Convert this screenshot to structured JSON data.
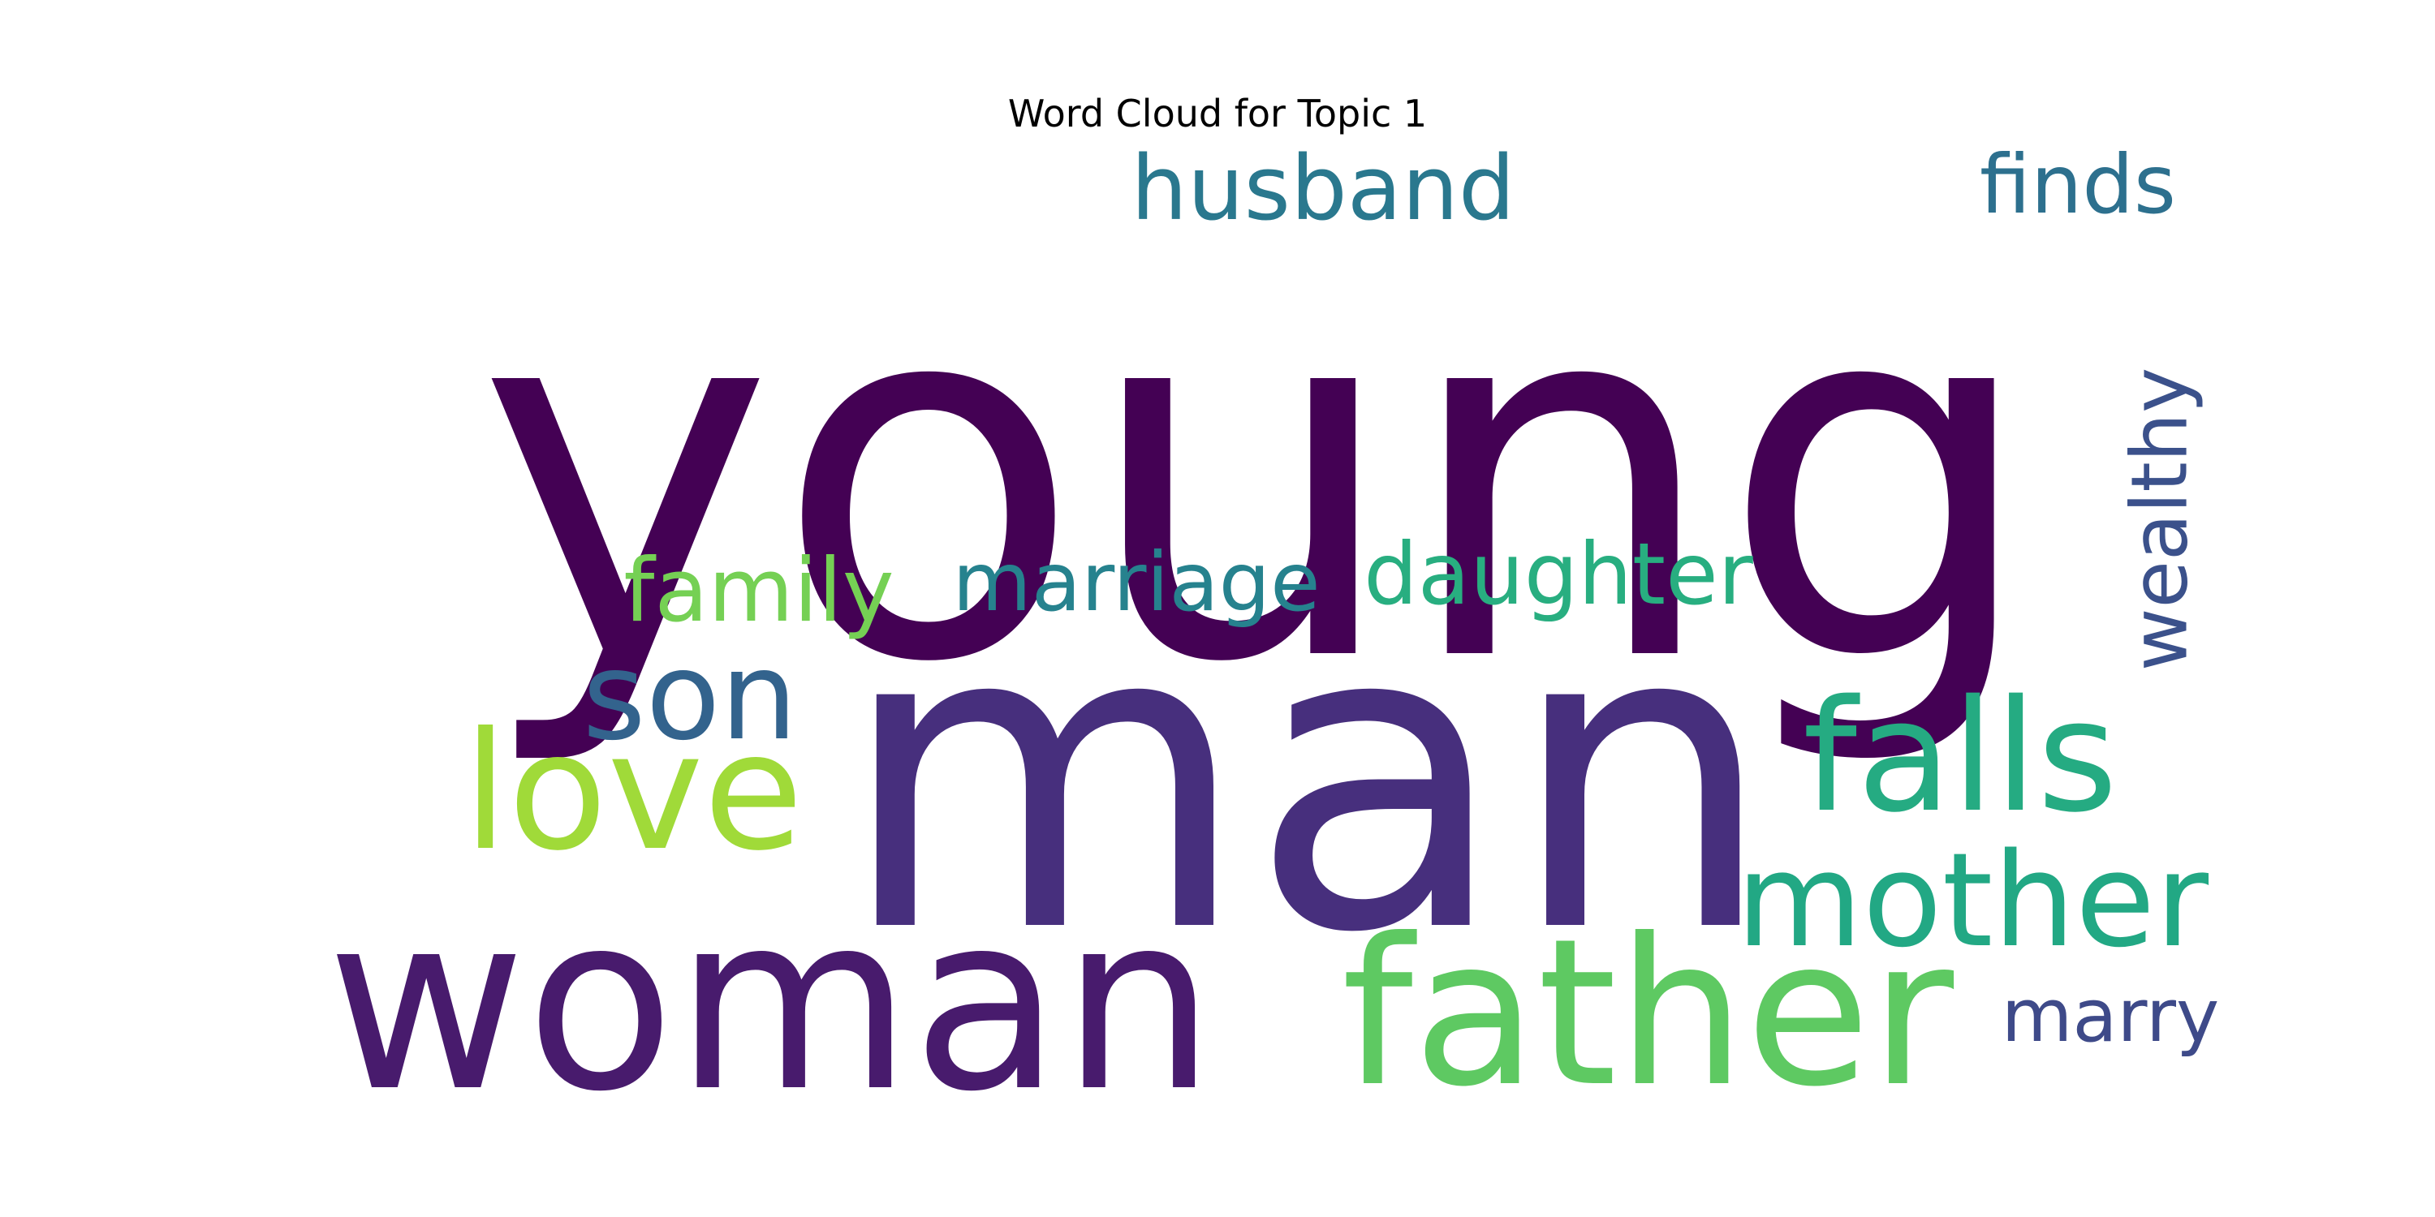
{
  "chart_data": {
    "type": "wordcloud",
    "title": "Word Cloud for Topic 1",
    "words": [
      {
        "text": "young",
        "color": "#440154"
      },
      {
        "text": "man",
        "color": "#472f7d"
      },
      {
        "text": "woman",
        "color": "#481b6d"
      },
      {
        "text": "father",
        "color": "#5ec962"
      },
      {
        "text": "falls",
        "color": "#25ab82"
      },
      {
        "text": "mother",
        "color": "#22a884"
      },
      {
        "text": "love",
        "color": "#a0da39"
      },
      {
        "text": "son",
        "color": "#33638d"
      },
      {
        "text": "daughter",
        "color": "#28ae80"
      },
      {
        "text": "marriage",
        "color": "#26828e"
      },
      {
        "text": "family",
        "color": "#75d054"
      },
      {
        "text": "husband",
        "color": "#2a788e"
      },
      {
        "text": "finds",
        "color": "#2d708e"
      },
      {
        "text": "wealthy",
        "color": "#3b518b"
      },
      {
        "text": "marry",
        "color": "#3e4a89"
      }
    ]
  }
}
